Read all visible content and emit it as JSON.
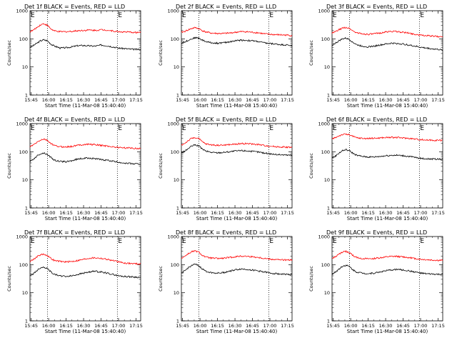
{
  "figure": {
    "background": "#ffffff"
  },
  "chart_data": [
    {
      "type": "line",
      "title": "Det 1f BLACK = Events, RED = LLD",
      "xlabel": "Start Time (11-Mar-08 15:40:40)",
      "ylabel": "Counts/sec",
      "y_scale": "log",
      "ylim": [
        1,
        1000
      ],
      "y_ticks": [
        "1",
        "10",
        "100",
        "1000"
      ],
      "x_ticks": [
        "15:45",
        "16:00",
        "16:15",
        "16:30",
        "16:45",
        "17:00",
        "17:15"
      ],
      "x_tick_minutes": [
        0,
        15,
        30,
        45,
        60,
        75,
        90
      ],
      "xlim_minutes": [
        -1,
        94
      ],
      "vlines_minutes": [
        14,
        74
      ],
      "markers": [
        {
          "label": "E",
          "minute": -1
        },
        {
          "label": "E",
          "minute": 74
        }
      ],
      "x": [
        -1,
        2,
        5,
        8,
        11,
        14,
        17,
        20,
        25,
        30,
        35,
        40,
        45,
        50,
        55,
        60,
        65,
        70,
        75,
        80,
        85,
        90,
        93
      ],
      "series": [
        {
          "name": "BLACK = Events",
          "color": "#000000",
          "values": [
            50,
            58,
            70,
            85,
            92,
            85,
            65,
            55,
            47,
            48,
            52,
            57,
            58,
            56,
            55,
            60,
            57,
            52,
            47,
            45,
            43,
            42,
            42
          ]
        },
        {
          "name": "RED = LLD",
          "color": "#ff0000",
          "values": [
            180,
            205,
            255,
            315,
            345,
            300,
            225,
            190,
            178,
            180,
            185,
            195,
            200,
            205,
            200,
            210,
            205,
            190,
            180,
            175,
            172,
            168,
            170
          ]
        }
      ]
    },
    {
      "type": "line",
      "title": "Det 2f BLACK = Events, RED = LLD",
      "xlabel": "Start Time (11-Mar-08 15:40:40)",
      "ylabel": "Counts/sec",
      "y_scale": "log",
      "ylim": [
        1,
        1000
      ],
      "y_ticks": [
        "1",
        "10",
        "100",
        "1000"
      ],
      "x_ticks": [
        "15:45",
        "16:00",
        "16:15",
        "16:30",
        "16:45",
        "17:00",
        "17:15"
      ],
      "x_tick_minutes": [
        0,
        15,
        30,
        45,
        60,
        75,
        90
      ],
      "xlim_minutes": [
        -1,
        94
      ],
      "vlines_minutes": [
        14,
        74
      ],
      "markers": [
        {
          "label": "E",
          "minute": -1
        },
        {
          "label": "E",
          "minute": 74
        }
      ],
      "x": [
        -1,
        2,
        5,
        8,
        11,
        14,
        17,
        20,
        25,
        30,
        35,
        40,
        45,
        50,
        55,
        60,
        65,
        70,
        75,
        80,
        85,
        90,
        93
      ],
      "series": [
        {
          "name": "BLACK = Events",
          "color": "#000000",
          "values": [
            70,
            78,
            90,
            100,
            110,
            105,
            90,
            80,
            72,
            70,
            72,
            78,
            85,
            90,
            88,
            85,
            80,
            72,
            68,
            65,
            62,
            60,
            58
          ]
        },
        {
          "name": "RED = LLD",
          "color": "#ff0000",
          "values": [
            170,
            185,
            210,
            235,
            250,
            230,
            195,
            175,
            160,
            155,
            155,
            160,
            170,
            180,
            178,
            170,
            165,
            150,
            145,
            140,
            138,
            135,
            132
          ]
        }
      ]
    },
    {
      "type": "line",
      "title": "Det 3f BLACK = Events, RED = LLD",
      "xlabel": "Start Time (11-Mar-08 15:40:40)",
      "ylabel": "Counts/sec",
      "y_scale": "log",
      "ylim": [
        1,
        1000
      ],
      "y_ticks": [
        "1",
        "10",
        "100",
        "1000"
      ],
      "x_ticks": [
        "15:45",
        "16:00",
        "16:15",
        "16:30",
        "16:45",
        "17:00",
        "17:15"
      ],
      "x_tick_minutes": [
        0,
        15,
        30,
        45,
        60,
        75,
        90
      ],
      "xlim_minutes": [
        -1,
        94
      ],
      "vlines_minutes": [
        14,
        74
      ],
      "markers": [
        {
          "label": "E",
          "minute": -1
        },
        {
          "label": "E",
          "minute": 74
        }
      ],
      "x": [
        -1,
        2,
        5,
        8,
        11,
        14,
        17,
        20,
        25,
        30,
        35,
        40,
        45,
        50,
        55,
        60,
        65,
        70,
        75,
        80,
        85,
        90,
        93
      ],
      "series": [
        {
          "name": "BLACK = Events",
          "color": "#000000",
          "values": [
            60,
            70,
            85,
            100,
            105,
            95,
            75,
            62,
            55,
            52,
            55,
            60,
            65,
            70,
            68,
            65,
            60,
            55,
            50,
            47,
            44,
            42,
            40
          ]
        },
        {
          "name": "RED = LLD",
          "color": "#ff0000",
          "values": [
            160,
            180,
            210,
            240,
            255,
            235,
            190,
            165,
            150,
            145,
            150,
            160,
            175,
            185,
            180,
            170,
            160,
            145,
            135,
            130,
            125,
            120,
            118
          ]
        }
      ]
    },
    {
      "type": "line",
      "title": "Det 4f BLACK = Events, RED = LLD",
      "xlabel": "Start Time (11-Mar-08 15:40:40)",
      "ylabel": "Counts/sec",
      "y_scale": "log",
      "ylim": [
        1,
        1000
      ],
      "y_ticks": [
        "1",
        "10",
        "100",
        "1000"
      ],
      "x_ticks": [
        "15:45",
        "16:00",
        "16:15",
        "16:30",
        "16:45",
        "17:00",
        "17:15"
      ],
      "x_tick_minutes": [
        0,
        15,
        30,
        45,
        60,
        75,
        90
      ],
      "xlim_minutes": [
        -1,
        94
      ],
      "vlines_minutes": [
        14,
        74
      ],
      "markers": [
        {
          "label": "E",
          "minute": -1
        },
        {
          "label": "E",
          "minute": 74
        }
      ],
      "x": [
        -1,
        2,
        5,
        8,
        11,
        14,
        17,
        20,
        25,
        30,
        35,
        40,
        45,
        50,
        55,
        60,
        65,
        70,
        75,
        80,
        85,
        90,
        93
      ],
      "series": [
        {
          "name": "BLACK = Events",
          "color": "#000000",
          "values": [
            45,
            55,
            70,
            85,
            90,
            80,
            62,
            50,
            45,
            44,
            48,
            55,
            58,
            60,
            57,
            52,
            50,
            46,
            42,
            40,
            38,
            37,
            36
          ]
        },
        {
          "name": "RED = LLD",
          "color": "#ff0000",
          "values": [
            150,
            175,
            215,
            260,
            280,
            250,
            195,
            165,
            150,
            148,
            155,
            170,
            180,
            185,
            178,
            168,
            160,
            150,
            142,
            138,
            135,
            132,
            130
          ]
        }
      ]
    },
    {
      "type": "line",
      "title": "Det 5f BLACK = Events, RED = LLD",
      "xlabel": "Start Time (11-Mar-08 15:40:40)",
      "ylabel": "Counts/sec",
      "y_scale": "log",
      "ylim": [
        1,
        1000
      ],
      "y_ticks": [
        "1",
        "10",
        "100",
        "1000"
      ],
      "x_ticks": [
        "15:45",
        "16:00",
        "16:15",
        "16:30",
        "16:45",
        "17:00",
        "17:15"
      ],
      "x_tick_minutes": [
        0,
        15,
        30,
        45,
        60,
        75,
        90
      ],
      "xlim_minutes": [
        -1,
        94
      ],
      "vlines_minutes": [
        14,
        74
      ],
      "markers": [
        {
          "label": "E",
          "minute": -1
        },
        {
          "label": "E",
          "minute": 74
        }
      ],
      "x": [
        -1,
        2,
        5,
        8,
        11,
        14,
        17,
        20,
        25,
        30,
        35,
        40,
        45,
        50,
        55,
        60,
        65,
        70,
        75,
        80,
        85,
        90,
        93
      ],
      "series": [
        {
          "name": "BLACK = Events",
          "color": "#000000",
          "values": [
            90,
            105,
            130,
            160,
            175,
            160,
            125,
            105,
            95,
            92,
            95,
            100,
            105,
            110,
            108,
            102,
            98,
            90,
            85,
            80,
            78,
            76,
            75
          ]
        },
        {
          "name": "RED = LLD",
          "color": "#ff0000",
          "values": [
            170,
            200,
            250,
            300,
            320,
            290,
            225,
            190,
            175,
            170,
            172,
            178,
            185,
            195,
            195,
            188,
            180,
            168,
            158,
            152,
            148,
            145,
            145
          ]
        }
      ]
    },
    {
      "type": "line",
      "title": "Det 6f BLACK = Events, RED = LLD",
      "xlabel": "Start Time (11-Mar-08 15:40:40)",
      "ylabel": "Counts/sec",
      "y_scale": "log",
      "ylim": [
        1,
        1000
      ],
      "y_ticks": [
        "1",
        "10",
        "100",
        "1000"
      ],
      "x_ticks": [
        "15:45",
        "16:00",
        "16:15",
        "16:30",
        "16:45",
        "17:00",
        "17:15"
      ],
      "x_tick_minutes": [
        0,
        15,
        30,
        45,
        60,
        75,
        90
      ],
      "xlim_minutes": [
        -1,
        94
      ],
      "vlines_minutes": [
        14,
        74
      ],
      "markers": [
        {
          "label": "E",
          "minute": -1
        },
        {
          "label": "E",
          "minute": 74
        }
      ],
      "x": [
        -1,
        2,
        5,
        8,
        11,
        14,
        17,
        20,
        25,
        30,
        35,
        40,
        45,
        50,
        55,
        60,
        65,
        70,
        75,
        80,
        85,
        90,
        93
      ],
      "series": [
        {
          "name": "BLACK = Events",
          "color": "#000000",
          "values": [
            60,
            70,
            90,
            110,
            118,
            108,
            88,
            75,
            68,
            65,
            65,
            68,
            72,
            75,
            75,
            72,
            68,
            63,
            58,
            56,
            55,
            55,
            55
          ]
        },
        {
          "name": "RED = LLD",
          "color": "#ff0000",
          "values": [
            280,
            320,
            370,
            410,
            420,
            400,
            350,
            315,
            300,
            295,
            300,
            310,
            320,
            325,
            320,
            310,
            300,
            285,
            270,
            262,
            258,
            255,
            255
          ]
        }
      ]
    },
    {
      "type": "line",
      "title": "Det 7f BLACK = Events, RED = LLD",
      "xlabel": "Start Time (11-Mar-08 15:40:40)",
      "ylabel": "Counts/sec",
      "y_scale": "log",
      "ylim": [
        1,
        1000
      ],
      "y_ticks": [
        "1",
        "10",
        "100",
        "1000"
      ],
      "x_ticks": [
        "15:45",
        "16:00",
        "16:15",
        "16:30",
        "16:45",
        "17:00",
        "17:15"
      ],
      "x_tick_minutes": [
        0,
        15,
        30,
        45,
        60,
        75,
        90
      ],
      "xlim_minutes": [
        -1,
        94
      ],
      "vlines_minutes": [
        14,
        74
      ],
      "markers": [
        {
          "label": "E",
          "minute": -1
        },
        {
          "label": "E",
          "minute": 74
        }
      ],
      "x": [
        -1,
        2,
        5,
        8,
        11,
        14,
        17,
        20,
        25,
        30,
        35,
        40,
        45,
        50,
        55,
        60,
        65,
        70,
        75,
        80,
        85,
        90,
        93
      ],
      "series": [
        {
          "name": "BLACK = Events",
          "color": "#000000",
          "values": [
            40,
            48,
            62,
            78,
            82,
            72,
            55,
            45,
            40,
            38,
            40,
            45,
            50,
            55,
            58,
            55,
            50,
            45,
            40,
            38,
            37,
            36,
            35
          ]
        },
        {
          "name": "RED = LLD",
          "color": "#ff0000",
          "values": [
            130,
            155,
            190,
            225,
            235,
            210,
            165,
            140,
            130,
            125,
            130,
            140,
            155,
            170,
            175,
            168,
            155,
            140,
            125,
            115,
            110,
            108,
            106
          ]
        }
      ]
    },
    {
      "type": "line",
      "title": "Det 8f BLACK = Events, RED = LLD",
      "xlabel": "Start Time (11-Mar-08 15:40:40)",
      "ylabel": "Counts/sec",
      "y_scale": "log",
      "ylim": [
        1,
        1000
      ],
      "y_ticks": [
        "1",
        "10",
        "100",
        "1000"
      ],
      "x_ticks": [
        "15:45",
        "16:00",
        "16:15",
        "16:30",
        "16:45",
        "17:00",
        "17:15"
      ],
      "x_tick_minutes": [
        0,
        15,
        30,
        45,
        60,
        75,
        90
      ],
      "xlim_minutes": [
        -1,
        94
      ],
      "vlines_minutes": [
        14,
        74
      ],
      "markers": [
        {
          "label": "E",
          "minute": -1
        },
        {
          "label": "E",
          "minute": 74
        }
      ],
      "x": [
        -1,
        2,
        5,
        8,
        11,
        14,
        17,
        20,
        25,
        30,
        35,
        40,
        45,
        50,
        55,
        60,
        65,
        70,
        75,
        80,
        85,
        90,
        93
      ],
      "series": [
        {
          "name": "BLACK = Events",
          "color": "#000000",
          "values": [
            50,
            60,
            78,
            95,
            102,
            90,
            70,
            58,
            52,
            50,
            52,
            58,
            65,
            70,
            68,
            64,
            60,
            55,
            50,
            48,
            46,
            45,
            44
          ]
        },
        {
          "name": "RED = LLD",
          "color": "#ff0000",
          "values": [
            170,
            200,
            245,
            290,
            305,
            275,
            215,
            185,
            170,
            165,
            168,
            178,
            190,
            200,
            198,
            190,
            180,
            168,
            158,
            152,
            148,
            145,
            145
          ]
        }
      ]
    },
    {
      "type": "line",
      "title": "Det 9f BLACK = Events, RED = LLD",
      "xlabel": "Start Time (11-Mar-08 15:40:40)",
      "ylabel": "Counts/sec",
      "y_scale": "log",
      "ylim": [
        1,
        1000
      ],
      "y_ticks": [
        "1",
        "10",
        "100",
        "1000"
      ],
      "x_ticks": [
        "15:45",
        "16:00",
        "16:15",
        "16:30",
        "16:45",
        "17:00",
        "17:15"
      ],
      "x_tick_minutes": [
        0,
        15,
        30,
        45,
        60,
        75,
        90
      ],
      "xlim_minutes": [
        -1,
        94
      ],
      "vlines_minutes": [
        14,
        74
      ],
      "markers": [
        {
          "label": "E",
          "minute": -1
        },
        {
          "label": "E",
          "minute": 74
        }
      ],
      "x": [
        -1,
        2,
        5,
        8,
        11,
        14,
        17,
        20,
        25,
        30,
        35,
        40,
        45,
        50,
        55,
        60,
        65,
        70,
        75,
        80,
        85,
        90,
        93
      ],
      "series": [
        {
          "name": "BLACK = Events",
          "color": "#000000",
          "values": [
            45,
            55,
            70,
            88,
            95,
            85,
            65,
            55,
            50,
            48,
            50,
            55,
            60,
            65,
            68,
            64,
            60,
            55,
            50,
            47,
            46,
            45,
            45
          ]
        },
        {
          "name": "RED = LLD",
          "color": "#ff0000",
          "values": [
            165,
            190,
            235,
            280,
            295,
            265,
            210,
            180,
            165,
            160,
            165,
            175,
            185,
            195,
            195,
            188,
            178,
            165,
            155,
            150,
            145,
            142,
            142
          ]
        }
      ]
    }
  ]
}
